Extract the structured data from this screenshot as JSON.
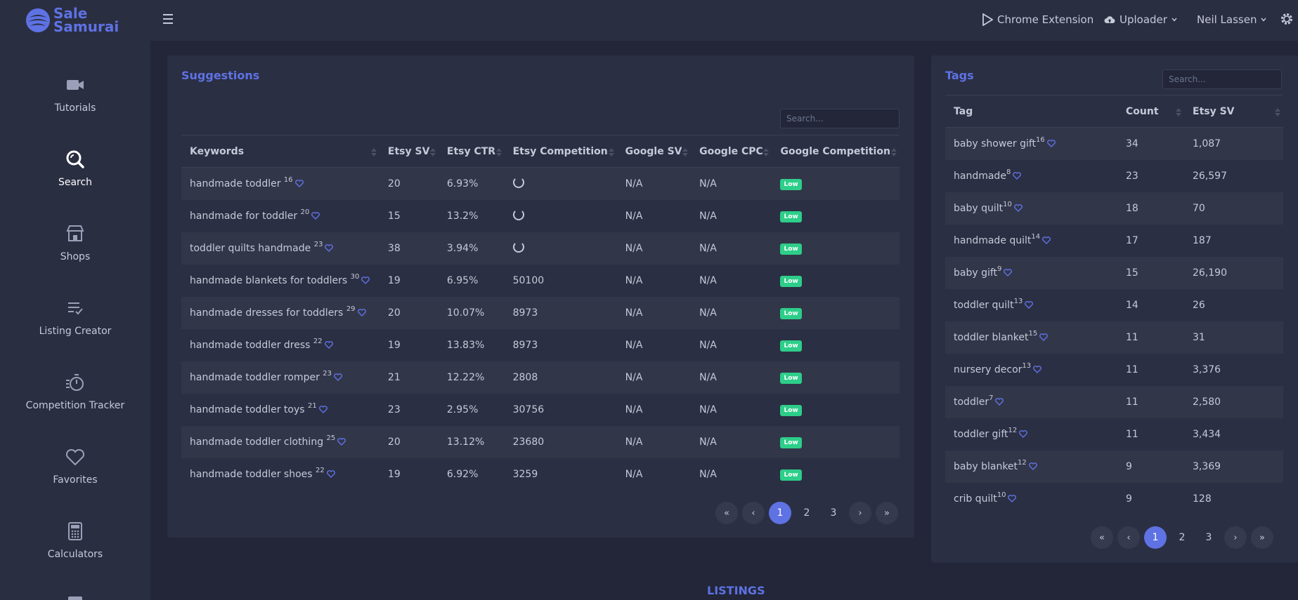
{
  "brand": {
    "line1": "Sale",
    "line2": "Samurai"
  },
  "sidebar": {
    "items": [
      {
        "label": "Tutorials",
        "icon": "video-camera-icon"
      },
      {
        "label": "Search",
        "icon": "search-icon",
        "active": true
      },
      {
        "label": "Shops",
        "icon": "store-icon"
      },
      {
        "label": "Listing Creator",
        "icon": "list-check-icon"
      },
      {
        "label": "Competition Tracker",
        "icon": "stopwatch-icon"
      },
      {
        "label": "Favorites",
        "icon": "heart-icon"
      },
      {
        "label": "Calculators",
        "icon": "calculator-icon"
      }
    ]
  },
  "topbar": {
    "chrome_extension": "Chrome Extension",
    "uploader": "Uploader",
    "user": "Neil Lassen"
  },
  "suggestions": {
    "title": "Suggestions",
    "search_placeholder": "Search...",
    "columns": [
      "Keywords",
      "Etsy SV",
      "Etsy CTR",
      "Etsy Competition",
      "Google SV",
      "Google CPC",
      "Google Competition"
    ],
    "rows": [
      {
        "keyword": "handmade toddler",
        "count": "16",
        "sv": "20",
        "ctr": "6.93%",
        "comp": "",
        "loading": true,
        "gsv": "N/A",
        "gcpc": "N/A",
        "gcomp": "Low"
      },
      {
        "keyword": "handmade for toddler",
        "count": "20",
        "sv": "15",
        "ctr": "13.2%",
        "comp": "",
        "loading": true,
        "gsv": "N/A",
        "gcpc": "N/A",
        "gcomp": "Low"
      },
      {
        "keyword": "toddler quilts handmade",
        "count": "23",
        "sv": "38",
        "ctr": "3.94%",
        "comp": "",
        "loading": true,
        "gsv": "N/A",
        "gcpc": "N/A",
        "gcomp": "Low"
      },
      {
        "keyword": "handmade blankets for toddlers",
        "count": "30",
        "sv": "19",
        "ctr": "6.95%",
        "comp": "50100",
        "loading": false,
        "gsv": "N/A",
        "gcpc": "N/A",
        "gcomp": "Low"
      },
      {
        "keyword": "handmade dresses for toddlers",
        "count": "29",
        "sv": "20",
        "ctr": "10.07%",
        "comp": "8973",
        "loading": false,
        "gsv": "N/A",
        "gcpc": "N/A",
        "gcomp": "Low"
      },
      {
        "keyword": "handmade toddler dress",
        "count": "22",
        "sv": "19",
        "ctr": "13.83%",
        "comp": "8973",
        "loading": false,
        "gsv": "N/A",
        "gcpc": "N/A",
        "gcomp": "Low"
      },
      {
        "keyword": "handmade toddler romper",
        "count": "23",
        "sv": "21",
        "ctr": "12.22%",
        "comp": "2808",
        "loading": false,
        "gsv": "N/A",
        "gcpc": "N/A",
        "gcomp": "Low"
      },
      {
        "keyword": "handmade toddler toys",
        "count": "21",
        "sv": "23",
        "ctr": "2.95%",
        "comp": "30756",
        "loading": false,
        "gsv": "N/A",
        "gcpc": "N/A",
        "gcomp": "Low"
      },
      {
        "keyword": "handmade toddler clothing",
        "count": "25",
        "sv": "20",
        "ctr": "13.12%",
        "comp": "23680",
        "loading": false,
        "gsv": "N/A",
        "gcpc": "N/A",
        "gcomp": "Low"
      },
      {
        "keyword": "handmade toddler shoes",
        "count": "22",
        "sv": "19",
        "ctr": "6.92%",
        "comp": "3259",
        "loading": false,
        "gsv": "N/A",
        "gcpc": "N/A",
        "gcomp": "Low"
      }
    ],
    "pagination": [
      "«",
      "‹",
      "1",
      "2",
      "3",
      "›",
      "»"
    ],
    "active_page": "1"
  },
  "tags": {
    "title": "Tags",
    "search_placeholder": "Search...",
    "columns": [
      "Tag",
      "Count",
      "Etsy SV"
    ],
    "rows": [
      {
        "tag": "baby shower gift",
        "sup": "16",
        "count": "34",
        "sv": "1,087"
      },
      {
        "tag": "handmade",
        "sup": "8",
        "count": "23",
        "sv": "26,597"
      },
      {
        "tag": "baby quilt",
        "sup": "10",
        "count": "18",
        "sv": "70"
      },
      {
        "tag": "handmade quilt",
        "sup": "14",
        "count": "17",
        "sv": "187"
      },
      {
        "tag": "baby gift",
        "sup": "9",
        "count": "15",
        "sv": "26,190"
      },
      {
        "tag": "toddler quilt",
        "sup": "13",
        "count": "14",
        "sv": "26"
      },
      {
        "tag": "toddler blanket",
        "sup": "15",
        "count": "11",
        "sv": "31"
      },
      {
        "tag": "nursery decor",
        "sup": "13",
        "count": "11",
        "sv": "3,376"
      },
      {
        "tag": "toddler",
        "sup": "7",
        "count": "11",
        "sv": "2,580"
      },
      {
        "tag": "toddler gift",
        "sup": "12",
        "count": "11",
        "sv": "3,434"
      },
      {
        "tag": "baby blanket",
        "sup": "12",
        "count": "9",
        "sv": "3,369"
      },
      {
        "tag": "crib quilt",
        "sup": "10",
        "count": "9",
        "sv": "128"
      }
    ],
    "pagination": [
      "«",
      "‹",
      "1",
      "2",
      "3",
      "›",
      "»"
    ],
    "active_page": "1"
  },
  "listings_label": "LISTINGS",
  "colors": {
    "accent": "#5e72e4",
    "badge": "#2dce89",
    "sidebar": "#2a2e41",
    "page": "#222638"
  }
}
